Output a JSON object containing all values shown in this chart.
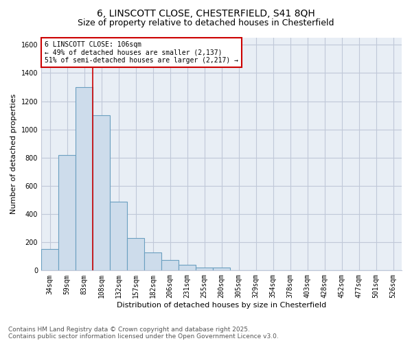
{
  "title_line1": "6, LINSCOTT CLOSE, CHESTERFIELD, S41 8QH",
  "title_line2": "Size of property relative to detached houses in Chesterfield",
  "xlabel": "Distribution of detached houses by size in Chesterfield",
  "ylabel": "Number of detached properties",
  "categories": [
    "34sqm",
    "59sqm",
    "83sqm",
    "108sqm",
    "132sqm",
    "157sqm",
    "182sqm",
    "206sqm",
    "231sqm",
    "255sqm",
    "280sqm",
    "305sqm",
    "329sqm",
    "354sqm",
    "378sqm",
    "403sqm",
    "428sqm",
    "452sqm",
    "477sqm",
    "501sqm",
    "526sqm"
  ],
  "values": [
    150,
    820,
    1300,
    1100,
    490,
    230,
    130,
    75,
    40,
    20,
    20,
    0,
    0,
    0,
    0,
    0,
    0,
    0,
    0,
    0,
    0
  ],
  "bar_color": "#cddceb",
  "bar_edge_color": "#6a9fc0",
  "vline_color": "#cc0000",
  "vline_bar_index": 2,
  "annotation_text": "6 LINSCOTT CLOSE: 106sqm\n← 49% of detached houses are smaller (2,137)\n51% of semi-detached houses are larger (2,217) →",
  "annotation_box_edge_color": "#cc0000",
  "ylim": [
    0,
    1650
  ],
  "yticks": [
    0,
    200,
    400,
    600,
    800,
    1000,
    1200,
    1400,
    1600
  ],
  "grid_color": "#c0c8d8",
  "plot_bg_color": "#e8eef5",
  "footer_line1": "Contains HM Land Registry data © Crown copyright and database right 2025.",
  "footer_line2": "Contains public sector information licensed under the Open Government Licence v3.0.",
  "title_fontsize": 10,
  "subtitle_fontsize": 9,
  "axis_label_fontsize": 8,
  "tick_fontsize": 7,
  "annotation_fontsize": 7,
  "footer_fontsize": 6.5
}
